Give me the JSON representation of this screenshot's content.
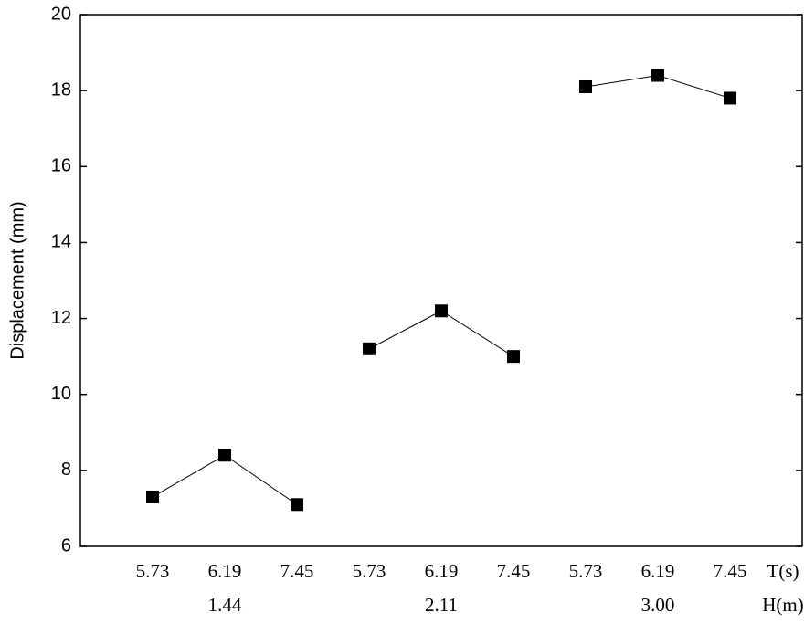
{
  "chart_data": {
    "type": "line",
    "y_label": "Displacement (mm)",
    "x_inner_label": "T(s)",
    "x_outer_label": "H(m)",
    "color": "#000000",
    "groups": [
      {
        "name": "1.44",
        "categories": [
          "5.73",
          "6.19",
          "7.45"
        ],
        "values": [
          7.3,
          8.4,
          7.1
        ]
      },
      {
        "name": "2.11",
        "categories": [
          "5.73",
          "6.19",
          "7.45"
        ],
        "values": [
          11.2,
          12.2,
          11.0
        ]
      },
      {
        "name": "3.00",
        "categories": [
          "5.73",
          "6.19",
          "7.45"
        ],
        "values": [
          18.1,
          18.4,
          17.8
        ]
      }
    ],
    "ylim": [
      6,
      20
    ],
    "yticks": [
      6,
      8,
      10,
      12,
      14,
      16,
      18,
      20
    ]
  }
}
